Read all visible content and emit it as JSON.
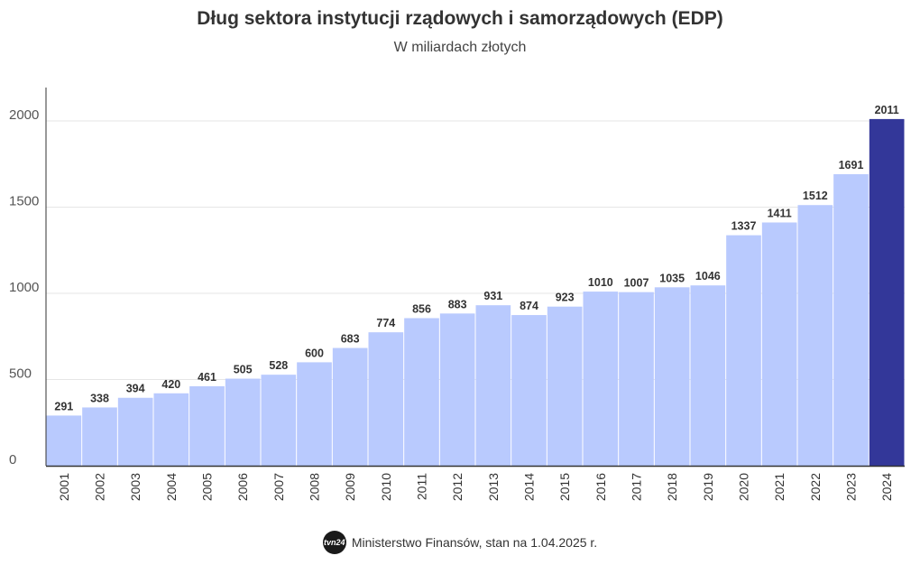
{
  "header": {
    "title": "Dług sektora instytucji rządowych i samorządowych (EDP)",
    "subtitle": "W miliardach złotych"
  },
  "footer": {
    "logo_text": "tvn24",
    "source": "Ministerstwo Finansów, stan na 1.04.2025 r."
  },
  "chart_data": {
    "type": "bar",
    "title": "Dług sektora instytucji rządowych i samorządowych (EDP)",
    "subtitle": "W miliardach złotych",
    "xlabel": "",
    "ylabel": "",
    "categories": [
      "2001",
      "2002",
      "2003",
      "2004",
      "2005",
      "2006",
      "2007",
      "2008",
      "2009",
      "2010",
      "2011",
      "2012",
      "2013",
      "2014",
      "2015",
      "2016",
      "2017",
      "2018",
      "2019",
      "2020",
      "2021",
      "2022",
      "2023",
      "2024"
    ],
    "values": [
      291,
      338,
      394,
      420,
      461,
      505,
      528,
      600,
      683,
      774,
      856,
      883,
      931,
      874,
      923,
      1010,
      1007,
      1035,
      1046,
      1337,
      1411,
      1512,
      1691,
      2011
    ],
    "ylim": [
      0,
      2200
    ],
    "yticks": [
      0,
      500,
      1000,
      1500,
      2000
    ],
    "grid": true,
    "highlight_index": 23,
    "colors": {
      "bar": "#b9cafe",
      "highlight": "#333799",
      "grid": "#e6e6e6",
      "axis": "#333333"
    }
  }
}
